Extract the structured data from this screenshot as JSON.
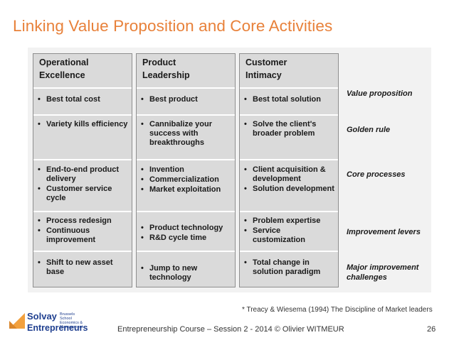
{
  "title": "Linking Value Proposition and Core Activities",
  "columns": [
    {
      "header": [
        "Operational",
        "Excellence"
      ],
      "cells": [
        [
          "Best total cost"
        ],
        [
          "Variety kills efficiency"
        ],
        [
          "End-to-end product delivery",
          "Customer service cycle"
        ],
        [
          "Process redesign",
          "Continuous improvement"
        ],
        [
          "Shift to new asset base"
        ]
      ]
    },
    {
      "header": [
        "Product",
        "Leadership"
      ],
      "cells": [
        [
          "Best product"
        ],
        [
          "Cannibalize your success with breakthroughs"
        ],
        [
          "Invention",
          "Commercialization",
          "Market exploitation"
        ],
        [
          "Product technology",
          "R&D cycle time"
        ],
        [
          "Jump to new technology"
        ]
      ]
    },
    {
      "header": [
        "Customer",
        "Intimacy"
      ],
      "cells": [
        [
          "Best total solution"
        ],
        [
          "Solve the client's broader problem"
        ],
        [
          "Client acquisition & development",
          "Solution development"
        ],
        [
          "Problem expertise",
          "Service customization"
        ],
        [
          "Total change in solution paradigm"
        ]
      ]
    }
  ],
  "row_labels": [
    "Value proposition",
    "Golden rule",
    "Core processes",
    "Improvement levers",
    "Major improvement challenges"
  ],
  "footnote": "* Treacy & Wiesema (1994) The Discipline of Market leaders",
  "logo": {
    "line1": "Solvay",
    "small": "Brussels School Economics & Management",
    "line2": "Entrepreneurs"
  },
  "footer": "Entrepreneurship Course – Session 2 - 2014 © Olivier WITMEUR",
  "page_number": "26",
  "colors": {
    "title": "#e8813a",
    "logo_blue": "#1f3f8f",
    "logo_orange": "#f2a03d"
  }
}
